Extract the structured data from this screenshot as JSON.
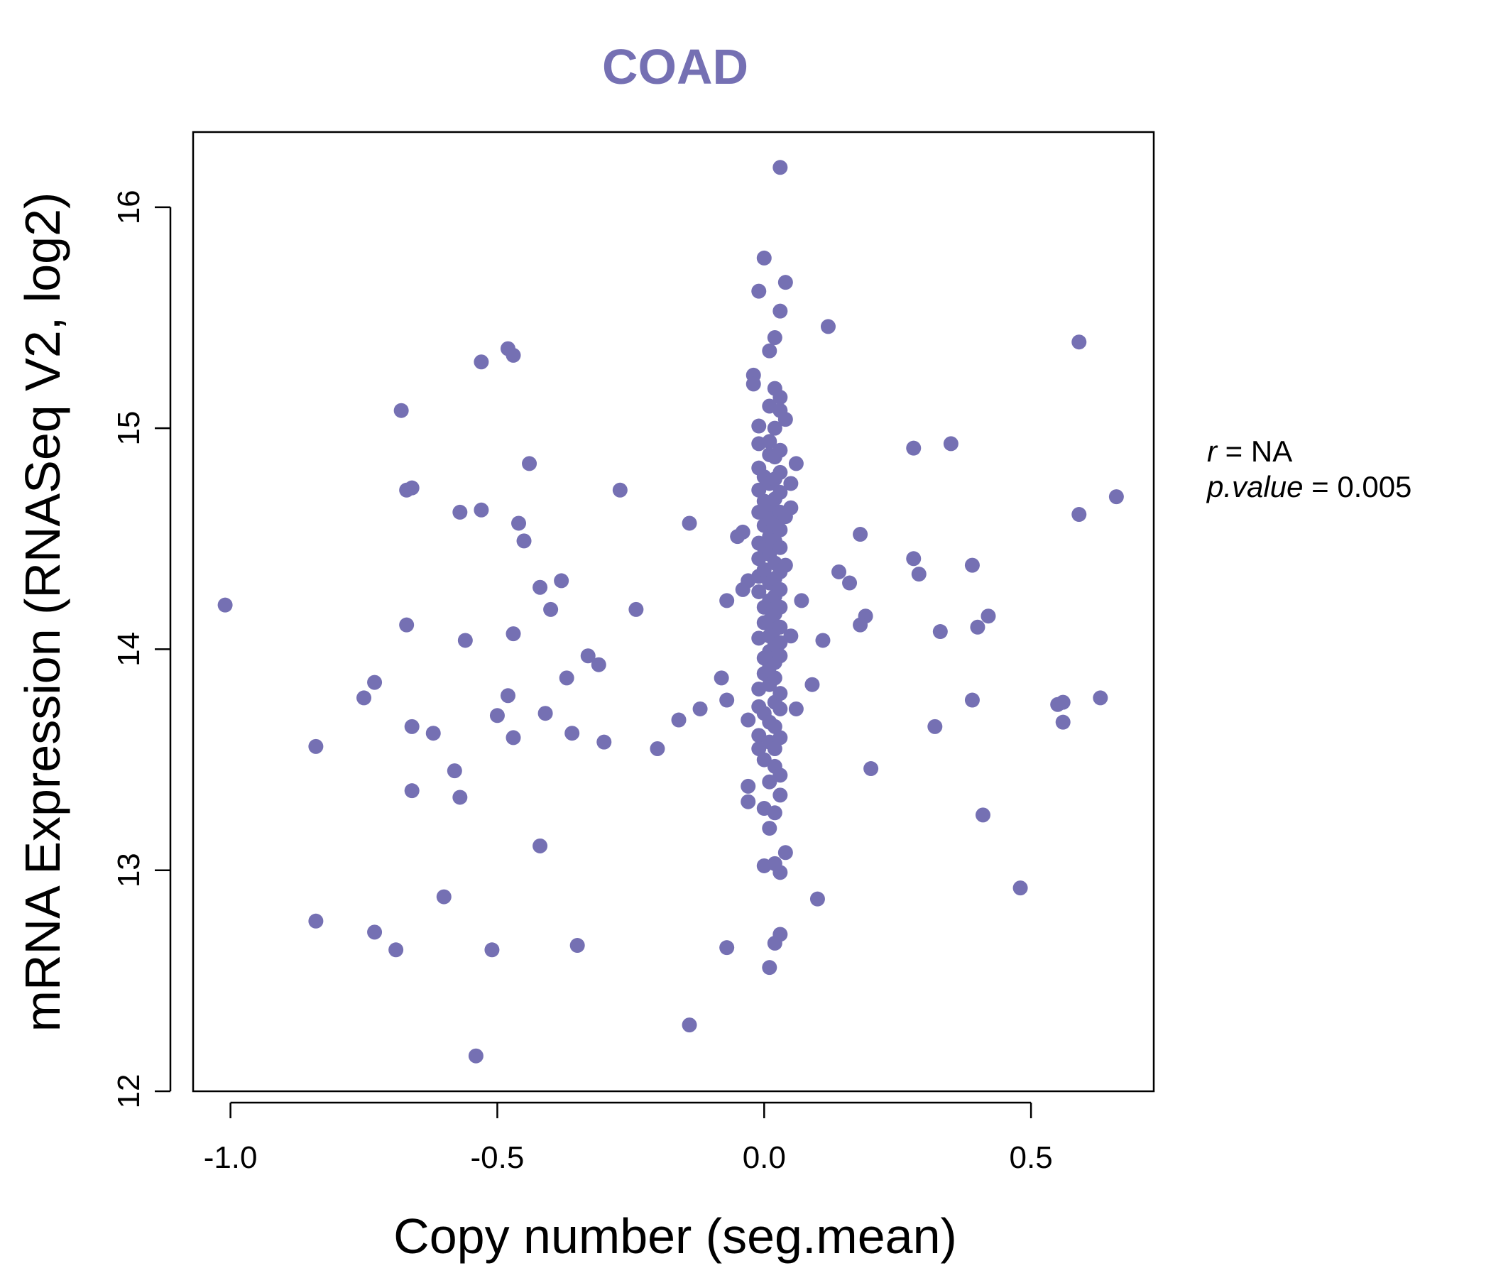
{
  "chart_data": {
    "type": "scatter",
    "title": "COAD",
    "xlabel": "Copy number (seg.mean)",
    "ylabel": "mRNA Expression (RNASeq V2, log2)",
    "xlim": [
      -1.07,
      0.73
    ],
    "ylim": [
      12.0,
      16.34
    ],
    "x_ticks": [
      -1.0,
      -0.5,
      0.0,
      0.5
    ],
    "x_tick_labels": [
      "-1.0",
      "-0.5",
      "0.0",
      "0.5"
    ],
    "y_ticks": [
      12,
      13,
      14,
      15,
      16
    ],
    "y_tick_labels": [
      "12",
      "13",
      "14",
      "15",
      "16"
    ],
    "grid": false,
    "legend": "none",
    "colors": {
      "points": "#7570b3",
      "title": "#7570b3",
      "axes": "#000000"
    },
    "stats": {
      "r_label": "r",
      "r_value": "NA",
      "p_label": "p.value",
      "p_value": "0.005"
    },
    "points": [
      [
        -1.01,
        14.2
      ],
      [
        -0.84,
        13.56
      ],
      [
        -0.84,
        12.77
      ],
      [
        -0.75,
        13.78
      ],
      [
        -0.73,
        13.85
      ],
      [
        -0.73,
        12.72
      ],
      [
        -0.69,
        12.64
      ],
      [
        -0.68,
        15.08
      ],
      [
        -0.67,
        14.72
      ],
      [
        -0.66,
        14.73
      ],
      [
        -0.67,
        14.11
      ],
      [
        -0.66,
        13.65
      ],
      [
        -0.66,
        13.36
      ],
      [
        -0.62,
        13.62
      ],
      [
        -0.6,
        12.88
      ],
      [
        -0.58,
        13.45
      ],
      [
        -0.57,
        14.62
      ],
      [
        -0.57,
        13.33
      ],
      [
        -0.56,
        14.04
      ],
      [
        -0.53,
        15.3
      ],
      [
        -0.53,
        14.63
      ],
      [
        -0.51,
        12.64
      ],
      [
        -0.5,
        13.7
      ],
      [
        -0.54,
        12.16
      ],
      [
        -0.48,
        15.36
      ],
      [
        -0.47,
        15.33
      ],
      [
        -0.48,
        13.79
      ],
      [
        -0.47,
        14.07
      ],
      [
        -0.47,
        13.6
      ],
      [
        -0.46,
        14.57
      ],
      [
        -0.45,
        14.49
      ],
      [
        -0.44,
        14.84
      ],
      [
        -0.42,
        14.28
      ],
      [
        -0.42,
        13.11
      ],
      [
        -0.41,
        13.71
      ],
      [
        -0.4,
        14.18
      ],
      [
        -0.38,
        14.31
      ],
      [
        -0.37,
        13.87
      ],
      [
        -0.36,
        13.62
      ],
      [
        -0.35,
        12.66
      ],
      [
        -0.33,
        13.97
      ],
      [
        -0.31,
        13.93
      ],
      [
        -0.3,
        13.58
      ],
      [
        -0.27,
        14.72
      ],
      [
        -0.24,
        14.18
      ],
      [
        -0.2,
        13.55
      ],
      [
        -0.16,
        13.68
      ],
      [
        -0.14,
        14.57
      ],
      [
        -0.14,
        12.3
      ],
      [
        -0.12,
        13.73
      ],
      [
        -0.08,
        13.87
      ],
      [
        -0.07,
        13.77
      ],
      [
        -0.07,
        12.65
      ],
      [
        -0.07,
        14.22
      ],
      [
        -0.05,
        14.51
      ],
      [
        -0.04,
        14.53
      ],
      [
        -0.04,
        14.27
      ],
      [
        -0.03,
        14.31
      ],
      [
        -0.03,
        13.68
      ],
      [
        -0.03,
        13.38
      ],
      [
        -0.03,
        13.31
      ],
      [
        -0.02,
        15.24
      ],
      [
        -0.02,
        15.2
      ],
      [
        -0.01,
        15.62
      ],
      [
        -0.01,
        15.01
      ],
      [
        -0.01,
        14.93
      ],
      [
        -0.01,
        14.82
      ],
      [
        -0.01,
        14.72
      ],
      [
        -0.01,
        14.62
      ],
      [
        -0.01,
        14.48
      ],
      [
        -0.01,
        14.41
      ],
      [
        -0.01,
        14.33
      ],
      [
        -0.01,
        14.26
      ],
      [
        -0.01,
        14.05
      ],
      [
        -0.01,
        13.82
      ],
      [
        -0.01,
        13.74
      ],
      [
        -0.01,
        13.61
      ],
      [
        -0.01,
        13.55
      ],
      [
        0.0,
        15.77
      ],
      [
        0.0,
        14.78
      ],
      [
        0.0,
        14.67
      ],
      [
        0.0,
        14.56
      ],
      [
        0.0,
        14.46
      ],
      [
        0.0,
        14.36
      ],
      [
        0.0,
        14.19
      ],
      [
        0.0,
        14.12
      ],
      [
        0.0,
        13.96
      ],
      [
        0.0,
        13.89
      ],
      [
        0.0,
        13.71
      ],
      [
        0.0,
        13.5
      ],
      [
        0.0,
        13.28
      ],
      [
        0.0,
        13.02
      ],
      [
        0.01,
        15.35
      ],
      [
        0.01,
        15.1
      ],
      [
        0.01,
        14.94
      ],
      [
        0.01,
        14.88
      ],
      [
        0.01,
        14.75
      ],
      [
        0.01,
        14.64
      ],
      [
        0.01,
        14.59
      ],
      [
        0.01,
        14.51
      ],
      [
        0.01,
        14.43
      ],
      [
        0.01,
        14.3
      ],
      [
        0.01,
        14.22
      ],
      [
        0.01,
        14.13
      ],
      [
        0.01,
        14.06
      ],
      [
        0.01,
        13.99
      ],
      [
        0.01,
        13.92
      ],
      [
        0.01,
        13.84
      ],
      [
        0.01,
        13.67
      ],
      [
        0.01,
        13.58
      ],
      [
        0.01,
        13.4
      ],
      [
        0.01,
        13.19
      ],
      [
        0.01,
        12.56
      ],
      [
        0.02,
        15.41
      ],
      [
        0.02,
        15.18
      ],
      [
        0.02,
        15.0
      ],
      [
        0.02,
        14.87
      ],
      [
        0.02,
        14.77
      ],
      [
        0.02,
        14.68
      ],
      [
        0.02,
        14.57
      ],
      [
        0.02,
        14.49
      ],
      [
        0.02,
        14.39
      ],
      [
        0.02,
        14.32
      ],
      [
        0.02,
        14.24
      ],
      [
        0.02,
        14.16
      ],
      [
        0.02,
        14.09
      ],
      [
        0.02,
        14.02
      ],
      [
        0.02,
        13.94
      ],
      [
        0.02,
        13.87
      ],
      [
        0.02,
        13.76
      ],
      [
        0.02,
        13.65
      ],
      [
        0.02,
        13.55
      ],
      [
        0.02,
        13.47
      ],
      [
        0.02,
        13.26
      ],
      [
        0.02,
        13.03
      ],
      [
        0.02,
        12.67
      ],
      [
        0.03,
        16.18
      ],
      [
        0.03,
        15.53
      ],
      [
        0.03,
        15.14
      ],
      [
        0.03,
        15.08
      ],
      [
        0.03,
        14.9
      ],
      [
        0.03,
        14.8
      ],
      [
        0.03,
        14.71
      ],
      [
        0.03,
        14.62
      ],
      [
        0.03,
        14.54
      ],
      [
        0.03,
        14.46
      ],
      [
        0.03,
        14.35
      ],
      [
        0.03,
        14.27
      ],
      [
        0.03,
        14.19
      ],
      [
        0.03,
        14.1
      ],
      [
        0.03,
        14.03
      ],
      [
        0.03,
        13.97
      ],
      [
        0.03,
        13.8
      ],
      [
        0.03,
        13.73
      ],
      [
        0.03,
        13.6
      ],
      [
        0.03,
        13.43
      ],
      [
        0.03,
        13.34
      ],
      [
        0.03,
        12.99
      ],
      [
        0.03,
        12.71
      ],
      [
        0.04,
        15.66
      ],
      [
        0.04,
        15.04
      ],
      [
        0.04,
        14.6
      ],
      [
        0.04,
        14.38
      ],
      [
        0.04,
        13.08
      ],
      [
        0.05,
        14.75
      ],
      [
        0.05,
        14.64
      ],
      [
        0.05,
        14.06
      ],
      [
        0.06,
        14.84
      ],
      [
        0.06,
        13.73
      ],
      [
        0.07,
        14.22
      ],
      [
        0.09,
        13.84
      ],
      [
        0.1,
        12.87
      ],
      [
        0.11,
        14.04
      ],
      [
        0.12,
        15.46
      ],
      [
        0.14,
        14.35
      ],
      [
        0.16,
        14.3
      ],
      [
        0.18,
        14.52
      ],
      [
        0.19,
        14.15
      ],
      [
        0.18,
        14.11
      ],
      [
        0.2,
        13.46
      ],
      [
        0.28,
        14.91
      ],
      [
        0.28,
        14.41
      ],
      [
        0.29,
        14.34
      ],
      [
        0.32,
        13.65
      ],
      [
        0.33,
        14.08
      ],
      [
        0.35,
        14.93
      ],
      [
        0.39,
        13.77
      ],
      [
        0.39,
        14.38
      ],
      [
        0.4,
        14.1
      ],
      [
        0.41,
        13.25
      ],
      [
        0.42,
        14.15
      ],
      [
        0.48,
        12.92
      ],
      [
        0.55,
        13.75
      ],
      [
        0.56,
        13.76
      ],
      [
        0.56,
        13.67
      ],
      [
        0.59,
        15.39
      ],
      [
        0.59,
        14.61
      ],
      [
        0.63,
        13.78
      ],
      [
        0.66,
        14.69
      ]
    ]
  }
}
